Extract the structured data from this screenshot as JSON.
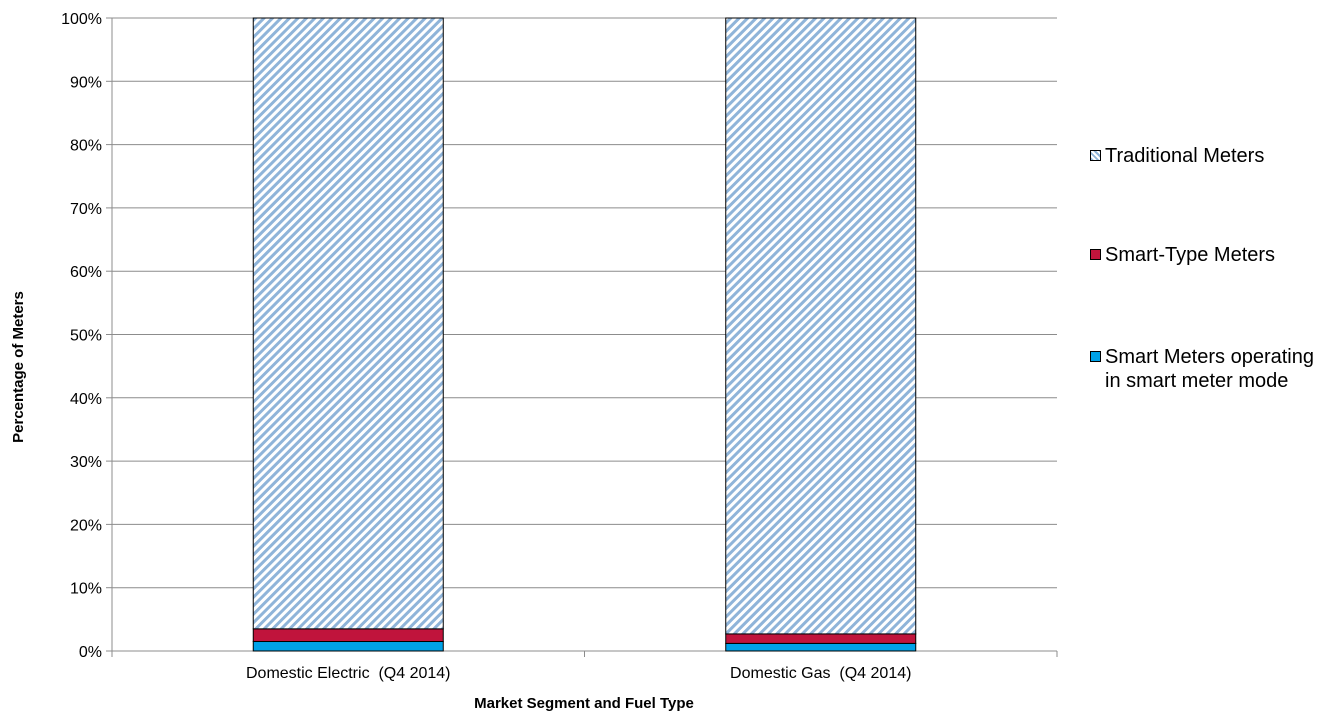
{
  "chart_data": {
    "type": "bar",
    "stacked": true,
    "categories": [
      "Domestic Electric  (Q4 2014)",
      "Domestic Gas  (Q4 2014)"
    ],
    "series": [
      {
        "name": "Smart Meters operating in smart meter mode",
        "values": [
          1.5,
          1.2
        ],
        "color": "#00a2e8",
        "pattern": "solid"
      },
      {
        "name": "Smart-Type Meters",
        "values": [
          2.0,
          1.5
        ],
        "color": "#c0143c",
        "pattern": "solid"
      },
      {
        "name": "Traditional Meters",
        "values": [
          96.5,
          97.3
        ],
        "color": "#8fb4d9",
        "pattern": "diagonal-hatch"
      }
    ],
    "xlabel": "Market Segment and Fuel Type",
    "ylabel": "Percentage of Meters",
    "ylim": [
      0,
      100
    ],
    "yticks": [
      "0%",
      "10%",
      "20%",
      "30%",
      "40%",
      "50%",
      "60%",
      "70%",
      "80%",
      "90%",
      "100%"
    ],
    "grid": true,
    "legend_position": "right"
  },
  "legend": {
    "traditional": "Traditional Meters",
    "smart_type": "Smart-Type Meters",
    "smart_mode": "Smart Meters operating in smart meter mode"
  }
}
